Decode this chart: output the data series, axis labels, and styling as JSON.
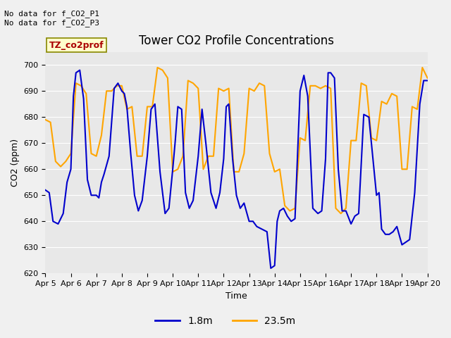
{
  "title": "Tower CO2 Profile Concentrations",
  "xlabel": "Time",
  "ylabel": "CO2 (ppm)",
  "ylim": [
    620,
    705
  ],
  "yticks": [
    620,
    630,
    640,
    650,
    660,
    670,
    680,
    690,
    700
  ],
  "line1_color": "#0000cc",
  "line2_color": "#ffa500",
  "line1_label": "1.8m",
  "line2_label": "23.5m",
  "bg_color": "#e8e8e8",
  "fig_bg_color": "#f0f0f0",
  "annotation_text": "No data for f_CO2_P1\nNo data for f_CO2_P3",
  "legend_label": "TZ_co2prof",
  "xtick_labels": [
    "Apr 5",
    "Apr 6",
    "Apr 7",
    "Apr 8",
    "Apr 9",
    "Apr 10",
    "Apr 11",
    "Apr 12",
    "Apr 13",
    "Apr 14",
    "Apr 15",
    "Apr 16",
    "Apr 17",
    "Apr 18",
    "Apr 19",
    "Apr 20"
  ],
  "x_positions": [
    0,
    1,
    2,
    3,
    4,
    5,
    6,
    7,
    8,
    9,
    10,
    11,
    12,
    13,
    14,
    15
  ],
  "blue_x": [
    0.0,
    0.15,
    0.3,
    0.5,
    0.7,
    0.85,
    1.0,
    1.1,
    1.2,
    1.35,
    1.5,
    1.65,
    1.8,
    2.0,
    2.1,
    2.2,
    2.3,
    2.5,
    2.7,
    2.85,
    3.0,
    3.1,
    3.2,
    3.35,
    3.5,
    3.65,
    3.8,
    4.0,
    4.15,
    4.3,
    4.5,
    4.7,
    4.85,
    5.0,
    5.1,
    5.2,
    5.35,
    5.5,
    5.65,
    5.8,
    6.0,
    6.15,
    6.3,
    6.5,
    6.7,
    6.85,
    7.0,
    7.1,
    7.2,
    7.35,
    7.5,
    7.65,
    7.8,
    8.0,
    8.15,
    8.3,
    8.5,
    8.7,
    8.85,
    9.0,
    9.1,
    9.2,
    9.35,
    9.5,
    9.65,
    9.8,
    10.0,
    10.15,
    10.3,
    10.5,
    10.7,
    10.85,
    11.0,
    11.1,
    11.2,
    11.35,
    11.5,
    11.65,
    11.8,
    12.0,
    12.15,
    12.3,
    12.5,
    12.7,
    12.85,
    13.0,
    13.1,
    13.2,
    13.35,
    13.5,
    13.65,
    13.8,
    14.0,
    14.15,
    14.3,
    14.5,
    14.7,
    14.85,
    15.0
  ],
  "blue_y": [
    652,
    651,
    640,
    639,
    643,
    655,
    660,
    688,
    697,
    698,
    687,
    656,
    650,
    650,
    649,
    655,
    658,
    665,
    691,
    693,
    690,
    689,
    684,
    666,
    650,
    644,
    648,
    665,
    683,
    685,
    659,
    643,
    645,
    660,
    671,
    684,
    683,
    651,
    645,
    648,
    665,
    683,
    670,
    651,
    645,
    651,
    664,
    684,
    685,
    664,
    650,
    645,
    647,
    640,
    640,
    638,
    637,
    636,
    622,
    623,
    640,
    644,
    645,
    642,
    640,
    641,
    690,
    696,
    688,
    645,
    643,
    644,
    664,
    697,
    697,
    695,
    660,
    644,
    644,
    639,
    642,
    643,
    681,
    680,
    665,
    650,
    651,
    637,
    635,
    635,
    636,
    638,
    631,
    632,
    633,
    651,
    685,
    694,
    694
  ],
  "orange_x": [
    0.0,
    0.2,
    0.4,
    0.6,
    0.8,
    1.0,
    1.2,
    1.4,
    1.6,
    1.8,
    2.0,
    2.2,
    2.4,
    2.6,
    2.8,
    3.0,
    3.2,
    3.4,
    3.6,
    3.8,
    4.0,
    4.2,
    4.4,
    4.6,
    4.8,
    5.0,
    5.2,
    5.4,
    5.6,
    5.8,
    6.0,
    6.2,
    6.4,
    6.6,
    6.8,
    7.0,
    7.2,
    7.4,
    7.6,
    7.8,
    8.0,
    8.2,
    8.4,
    8.6,
    8.8,
    9.0,
    9.2,
    9.4,
    9.6,
    9.8,
    10.0,
    10.2,
    10.4,
    10.6,
    10.8,
    11.0,
    11.2,
    11.4,
    11.6,
    11.8,
    12.0,
    12.2,
    12.4,
    12.6,
    12.8,
    13.0,
    13.2,
    13.4,
    13.6,
    13.8,
    14.0,
    14.2,
    14.4,
    14.6,
    14.8,
    15.0
  ],
  "orange_y": [
    679,
    678,
    663,
    661,
    663,
    666,
    693,
    692,
    689,
    666,
    665,
    673,
    690,
    690,
    692,
    692,
    683,
    684,
    665,
    665,
    684,
    684,
    699,
    698,
    695,
    659,
    660,
    665,
    694,
    693,
    691,
    660,
    665,
    665,
    691,
    690,
    691,
    659,
    659,
    666,
    691,
    690,
    693,
    692,
    666,
    659,
    660,
    646,
    644,
    645,
    672,
    671,
    692,
    692,
    691,
    692,
    691,
    645,
    643,
    645,
    671,
    671,
    693,
    692,
    672,
    671,
    686,
    685,
    689,
    688,
    660,
    660,
    684,
    683,
    699,
    695
  ]
}
